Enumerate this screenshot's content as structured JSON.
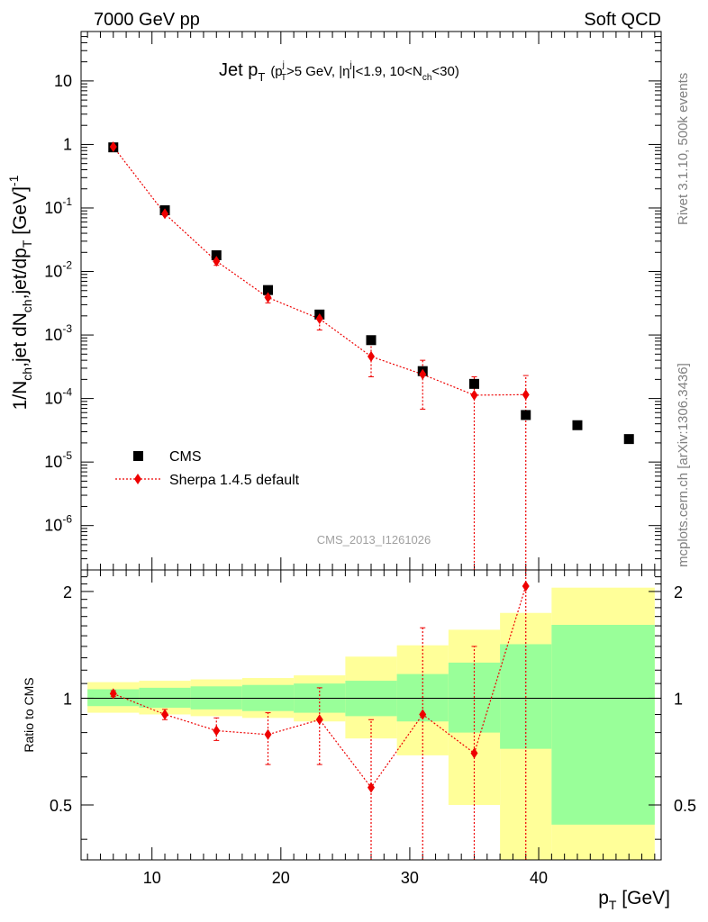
{
  "header": {
    "left": "7000 GeV pp",
    "right": "Soft QCD"
  },
  "side_labels": {
    "top": "Rivet 3.1.10,  500k events",
    "bottom": "mcplots.cern.ch [arXiv:1306.3436]"
  },
  "watermark": "CMS_2013_I1261026",
  "colors": {
    "data": "#000000",
    "mc": "#ee0000",
    "band_stat": "#99ff99",
    "band_total": "#ffff99",
    "ref_line": "#000000"
  },
  "chart_data": [
    {
      "type": "scatter",
      "role": "main",
      "title": "Jet p_T (p_T^j>5 GeV, |η^j|<1.9, 10<N_ch<30)",
      "title_parts": {
        "main": "Jet p",
        "main_sub": "T",
        "p1": "(p",
        "p1_sup": "j",
        "p1_sub": "T",
        "p2": ">5 GeV, |η",
        "p2_sup": "j",
        "p3": "|<1.9, 10<N",
        "p3_sub": "ch",
        "p4": "<30)"
      },
      "ylabel": "1/N_ch,jet dN_ch,jet/dp_T [GeV]^-1",
      "ylabel_parts": {
        "a": "1/N",
        "a_sub": "ch",
        "b": ",jet dN",
        "b_sub": "ch",
        "c": ",jet/dp",
        "c_sub": "T",
        "d": " [GeV]",
        "d_sup": "-1"
      },
      "xlim": [
        4.5,
        49.5
      ],
      "ylim": [
        2e-07,
        60
      ],
      "yscale": "log",
      "yticks": [
        {
          "value": 1e-06,
          "base": "10",
          "exp": "-6"
        },
        {
          "value": 1e-05,
          "base": "10",
          "exp": "-5"
        },
        {
          "value": 0.0001,
          "base": "10",
          "exp": "-4"
        },
        {
          "value": 0.001,
          "base": "10",
          "exp": "-3"
        },
        {
          "value": 0.01,
          "base": "10",
          "exp": "-2"
        },
        {
          "value": 0.1,
          "base": "10",
          "exp": "-1"
        },
        {
          "value": 1,
          "base": "1",
          "exp": ""
        },
        {
          "value": 10,
          "base": "10",
          "exp": ""
        }
      ],
      "legend": {
        "position": "bottom-left",
        "entries": [
          "CMS",
          "Sherpa 1.4.5 default"
        ]
      },
      "series": [
        {
          "name": "CMS",
          "marker": "square",
          "x": [
            7,
            11,
            15,
            19,
            23,
            27,
            31,
            35,
            39,
            43,
            47
          ],
          "y": [
            0.9,
            0.092,
            0.018,
            0.0051,
            0.0021,
            0.00083,
            0.00027,
            0.00017,
            5.5e-05,
            3.8e-05,
            2.3e-05
          ]
        },
        {
          "name": "Sherpa 1.4.5 default",
          "marker": "diamond",
          "line": "dotted",
          "x": [
            7,
            11,
            15,
            19,
            23,
            27,
            31,
            35,
            39
          ],
          "y": [
            0.92,
            0.081,
            0.0145,
            0.0039,
            0.0018,
            0.00046,
            0.00024,
            0.000113,
            0.000115
          ],
          "err_low": [
            0.9,
            0.077,
            0.0125,
            0.0032,
            0.0012,
            0.00022,
            6.8e-05,
            1e-07,
            1e-07
          ],
          "err_high": [
            0.94,
            0.086,
            0.0168,
            0.0047,
            0.0024,
            0.00075,
            0.0004,
            0.00022,
            0.00023
          ]
        }
      ]
    },
    {
      "type": "scatter",
      "role": "ratio",
      "ylabel": "Ratio to CMS",
      "xlabel": "p_T [GeV]",
      "xlabel_parts": {
        "a": "p",
        "a_sub": "T",
        "b": " [GeV]"
      },
      "xlim": [
        4.5,
        49.5
      ],
      "ylim": [
        0.35,
        2.3
      ],
      "yscale": "log",
      "yticks": [
        {
          "value": 0.5,
          "label": "0.5"
        },
        {
          "value": 1,
          "label": "1"
        },
        {
          "value": 2,
          "label": "2"
        }
      ],
      "xticks": [
        10,
        20,
        30,
        40
      ],
      "bands": [
        {
          "x0": 5,
          "x1": 9,
          "stat_low": 0.95,
          "stat_high": 1.06,
          "tot_low": 0.91,
          "tot_high": 1.11
        },
        {
          "x0": 9,
          "x1": 13,
          "stat_low": 0.94,
          "stat_high": 1.07,
          "tot_low": 0.9,
          "tot_high": 1.12
        },
        {
          "x0": 13,
          "x1": 17,
          "stat_low": 0.93,
          "stat_high": 1.08,
          "tot_low": 0.89,
          "tot_high": 1.13
        },
        {
          "x0": 17,
          "x1": 21,
          "stat_low": 0.92,
          "stat_high": 1.09,
          "tot_low": 0.88,
          "tot_high": 1.14
        },
        {
          "x0": 21,
          "x1": 25,
          "stat_low": 0.91,
          "stat_high": 1.1,
          "tot_low": 0.86,
          "tot_high": 1.16
        },
        {
          "x0": 25,
          "x1": 29,
          "stat_low": 0.89,
          "stat_high": 1.12,
          "tot_low": 0.77,
          "tot_high": 1.31
        },
        {
          "x0": 29,
          "x1": 33,
          "stat_low": 0.86,
          "stat_high": 1.17,
          "tot_low": 0.69,
          "tot_high": 1.41
        },
        {
          "x0": 33,
          "x1": 37,
          "stat_low": 0.8,
          "stat_high": 1.26,
          "tot_low": 0.5,
          "tot_high": 1.56
        },
        {
          "x0": 37,
          "x1": 41,
          "stat_low": 0.72,
          "stat_high": 1.42,
          "tot_low": 0.3,
          "tot_high": 1.74
        },
        {
          "x0": 41,
          "x1": 49,
          "stat_low": 0.44,
          "stat_high": 1.61,
          "tot_low": 0.3,
          "tot_high": 2.05
        }
      ],
      "series": [
        {
          "name": "Sherpa 1.4.5 default",
          "marker": "diamond",
          "line": "dotted",
          "x": [
            7,
            11,
            15,
            19,
            23,
            27,
            31,
            35,
            39
          ],
          "y": [
            1.03,
            0.9,
            0.81,
            0.79,
            0.87,
            0.56,
            0.9,
            0.7,
            2.07
          ],
          "err_low": [
            1.01,
            0.87,
            0.76,
            0.65,
            0.65,
            0.2,
            0.2,
            0.2,
            0.2
          ],
          "err_high": [
            1.05,
            0.93,
            0.88,
            0.91,
            1.07,
            0.87,
            1.58,
            1.4,
            3.0
          ]
        }
      ]
    }
  ]
}
